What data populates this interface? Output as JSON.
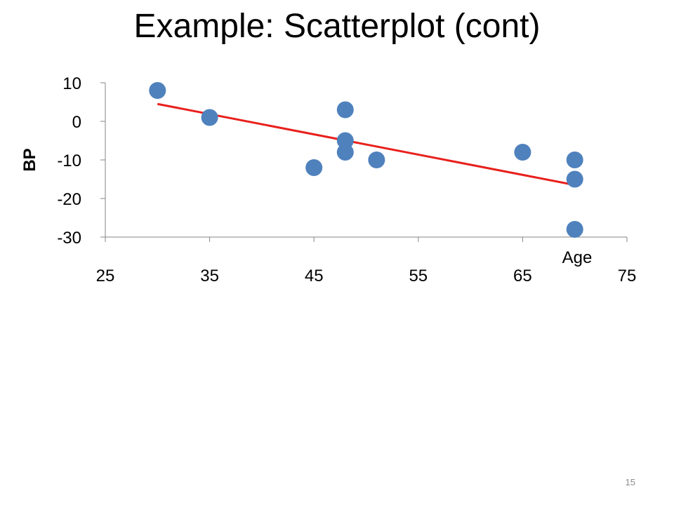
{
  "slide": {
    "title": "Example: Scatterplot (cont)",
    "page_number": "15"
  },
  "chart_data": {
    "type": "scatter",
    "title": "",
    "xlabel": "Age",
    "ylabel": "BP",
    "xlim": [
      25,
      75
    ],
    "ylim": [
      -30,
      10
    ],
    "x_ticks": [
      25,
      35,
      45,
      55,
      65,
      75
    ],
    "y_ticks": [
      10,
      0,
      -10,
      -20,
      -30
    ],
    "grid": false,
    "series": [
      {
        "points": [
          {
            "x": 30,
            "y": 8
          },
          {
            "x": 35,
            "y": 1
          },
          {
            "x": 45,
            "y": -12
          },
          {
            "x": 48,
            "y": 3
          },
          {
            "x": 48,
            "y": -5
          },
          {
            "x": 48,
            "y": -8
          },
          {
            "x": 51,
            "y": -10
          },
          {
            "x": 65,
            "y": -8
          },
          {
            "x": 70,
            "y": -10
          },
          {
            "x": 70,
            "y": -15
          },
          {
            "x": 70,
            "y": -28
          }
        ],
        "color": "#4F81BD"
      }
    ],
    "trendline": {
      "x": [
        30,
        70
      ],
      "y": [
        4.5,
        -16.5
      ],
      "color": "#E8201C"
    }
  }
}
